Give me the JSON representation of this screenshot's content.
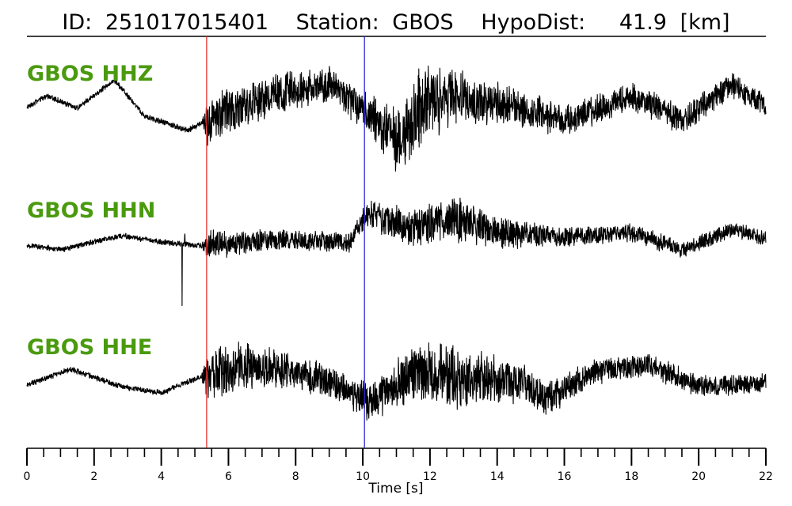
{
  "chart_data": {
    "type": "line",
    "title": {
      "id_label": "ID:",
      "id_value": "251017015401",
      "station_label": "Station:",
      "station_value": "GBOS",
      "dist_label": "HypoDist:",
      "dist_value": "41.9",
      "dist_unit": "[km]"
    },
    "xlabel": "Time [s]",
    "xlim": [
      0,
      22
    ],
    "major_ticks": [
      0,
      2,
      4,
      6,
      8,
      10,
      12,
      14,
      16,
      18,
      20,
      22
    ],
    "minor_tick_step": 0.5,
    "picks": [
      {
        "phase": "P",
        "time": 5.35,
        "color": "#e8302a"
      },
      {
        "phase": "S",
        "time": 10.05,
        "color": "#2b2bd6"
      }
    ],
    "label_color": "#4a9a0e",
    "trace_color": "#000000",
    "series": [
      {
        "name": "GBOS HHZ",
        "baseline_y": 135,
        "envelope": [
          [
            0,
            4
          ],
          [
            5.2,
            4
          ],
          [
            5.4,
            38
          ],
          [
            6,
            30
          ],
          [
            8,
            26
          ],
          [
            9.5,
            24
          ],
          [
            10.2,
            30
          ],
          [
            11,
            48
          ],
          [
            11.8,
            58
          ],
          [
            13,
            38
          ],
          [
            14.5,
            26
          ],
          [
            16,
            22
          ],
          [
            18,
            20
          ],
          [
            20,
            20
          ],
          [
            22,
            16
          ]
        ],
        "drift": [
          [
            0,
            0
          ],
          [
            0.6,
            -14
          ],
          [
            1.5,
            2
          ],
          [
            2.6,
            -34
          ],
          [
            3.5,
            12
          ],
          [
            4.8,
            30
          ],
          [
            5.4,
            16
          ],
          [
            7.5,
            -18
          ],
          [
            9,
            -28
          ],
          [
            10.2,
            10
          ],
          [
            11,
            40
          ],
          [
            12,
            -10
          ],
          [
            13,
            -8
          ],
          [
            14.5,
            0
          ],
          [
            16,
            18
          ],
          [
            18,
            -14
          ],
          [
            19.5,
            16
          ],
          [
            21,
            -28
          ],
          [
            22,
            0
          ]
        ],
        "spikes": []
      },
      {
        "name": "GBOS HHN",
        "baseline_y": 310,
        "envelope": [
          [
            0,
            4
          ],
          [
            5.2,
            4
          ],
          [
            5.4,
            22
          ],
          [
            6,
            18
          ],
          [
            8,
            14
          ],
          [
            9.8,
            14
          ],
          [
            10.3,
            24
          ],
          [
            11.5,
            26
          ],
          [
            12.8,
            34
          ],
          [
            14,
            22
          ],
          [
            16,
            14
          ],
          [
            18,
            12
          ],
          [
            20,
            12
          ],
          [
            22,
            10
          ]
        ],
        "drift": [
          [
            0,
            0
          ],
          [
            1,
            6
          ],
          [
            2.8,
            -12
          ],
          [
            4,
            -4
          ],
          [
            5.4,
            2
          ],
          [
            7,
            -6
          ],
          [
            9.6,
            -4
          ],
          [
            10.1,
            -40
          ],
          [
            11.5,
            -22
          ],
          [
            12.8,
            -34
          ],
          [
            14,
            -16
          ],
          [
            16,
            -10
          ],
          [
            18,
            -16
          ],
          [
            19.5,
            6
          ],
          [
            21,
            -20
          ],
          [
            22,
            -8
          ]
        ],
        "spikes": [
          {
            "t": 4.62,
            "v": 80
          },
          {
            "t": 4.7,
            "v": -14
          }
        ]
      },
      {
        "name": "GBOS HHE",
        "baseline_y": 487,
        "envelope": [
          [
            0,
            4
          ],
          [
            5.2,
            4
          ],
          [
            5.4,
            40
          ],
          [
            6,
            36
          ],
          [
            8,
            24
          ],
          [
            9.5,
            22
          ],
          [
            10.2,
            28
          ],
          [
            11.5,
            40
          ],
          [
            12.5,
            48
          ],
          [
            13.8,
            36
          ],
          [
            15.5,
            24
          ],
          [
            17,
            18
          ],
          [
            19,
            16
          ],
          [
            22,
            14
          ]
        ],
        "drift": [
          [
            0,
            0
          ],
          [
            1.3,
            -20
          ],
          [
            2.8,
            2
          ],
          [
            4,
            10
          ],
          [
            5.4,
            -14
          ],
          [
            7,
            -26
          ],
          [
            9,
            -4
          ],
          [
            10.2,
            20
          ],
          [
            11.6,
            -18
          ],
          [
            13,
            -8
          ],
          [
            14.5,
            -4
          ],
          [
            15.5,
            16
          ],
          [
            17,
            -18
          ],
          [
            18.5,
            -26
          ],
          [
            20,
            2
          ],
          [
            21.5,
            0
          ],
          [
            22,
            -6
          ]
        ],
        "spikes": []
      }
    ]
  }
}
